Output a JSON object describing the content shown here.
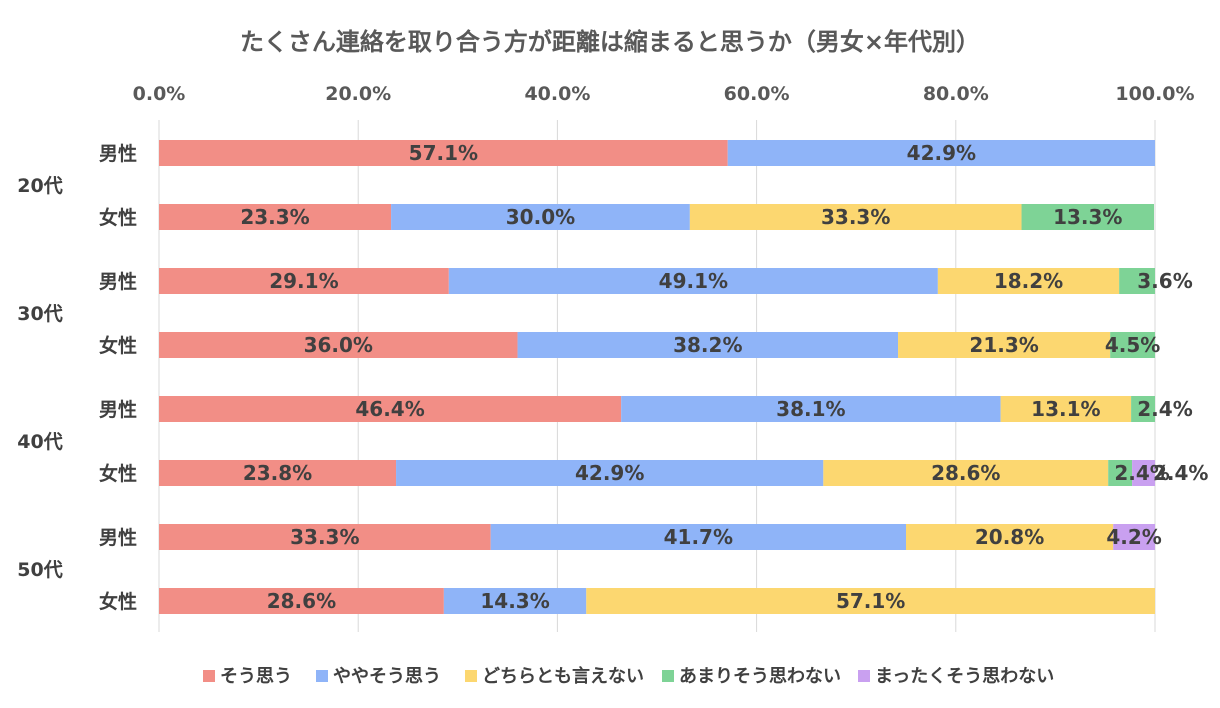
{
  "chart_data": {
    "type": "bar",
    "orientation": "horizontal",
    "stacked": true,
    "title": "たくさん連絡を取り合う方が距離は縮まると思うか（男女×年代別）",
    "xlim": [
      0,
      100
    ],
    "x_ticks": [
      "0.0%",
      "20.0%",
      "40.0%",
      "60.0%",
      "80.0%",
      "100.0%"
    ],
    "x_axis_position": "top",
    "grid": true,
    "legend_position": "bottom",
    "groups": [
      {
        "label": "20代",
        "categories": [
          "男性",
          "女性"
        ]
      },
      {
        "label": "30代",
        "categories": [
          "男性",
          "女性"
        ]
      },
      {
        "label": "40代",
        "categories": [
          "男性",
          "女性"
        ]
      },
      {
        "label": "50代",
        "categories": [
          "男性",
          "女性"
        ]
      }
    ],
    "categories": [
      "20代 男性",
      "20代 女性",
      "30代 男性",
      "30代 女性",
      "40代 男性",
      "40代 女性",
      "50代 男性",
      "50代 女性"
    ],
    "series": [
      {
        "name": "そう思う",
        "color": "#f28e86",
        "values": [
          57.1,
          23.3,
          29.1,
          36.0,
          46.4,
          23.8,
          33.3,
          28.6
        ]
      },
      {
        "name": "ややそう思う",
        "color": "#8fb4f8",
        "values": [
          42.9,
          30.0,
          49.1,
          38.2,
          38.1,
          42.9,
          41.7,
          14.3
        ]
      },
      {
        "name": "どちらとも言えない",
        "color": "#fcd770",
        "values": [
          0,
          33.3,
          18.2,
          21.3,
          13.1,
          28.6,
          20.8,
          57.1
        ]
      },
      {
        "name": "あまりそう思わない",
        "color": "#7ed396",
        "values": [
          0,
          13.3,
          3.6,
          4.5,
          2.4,
          2.4,
          0,
          0
        ]
      },
      {
        "name": "まったくそう思わない",
        "color": "#c9a0f0",
        "values": [
          0,
          0,
          0,
          0,
          0,
          2.4,
          4.2,
          0
        ]
      }
    ]
  }
}
